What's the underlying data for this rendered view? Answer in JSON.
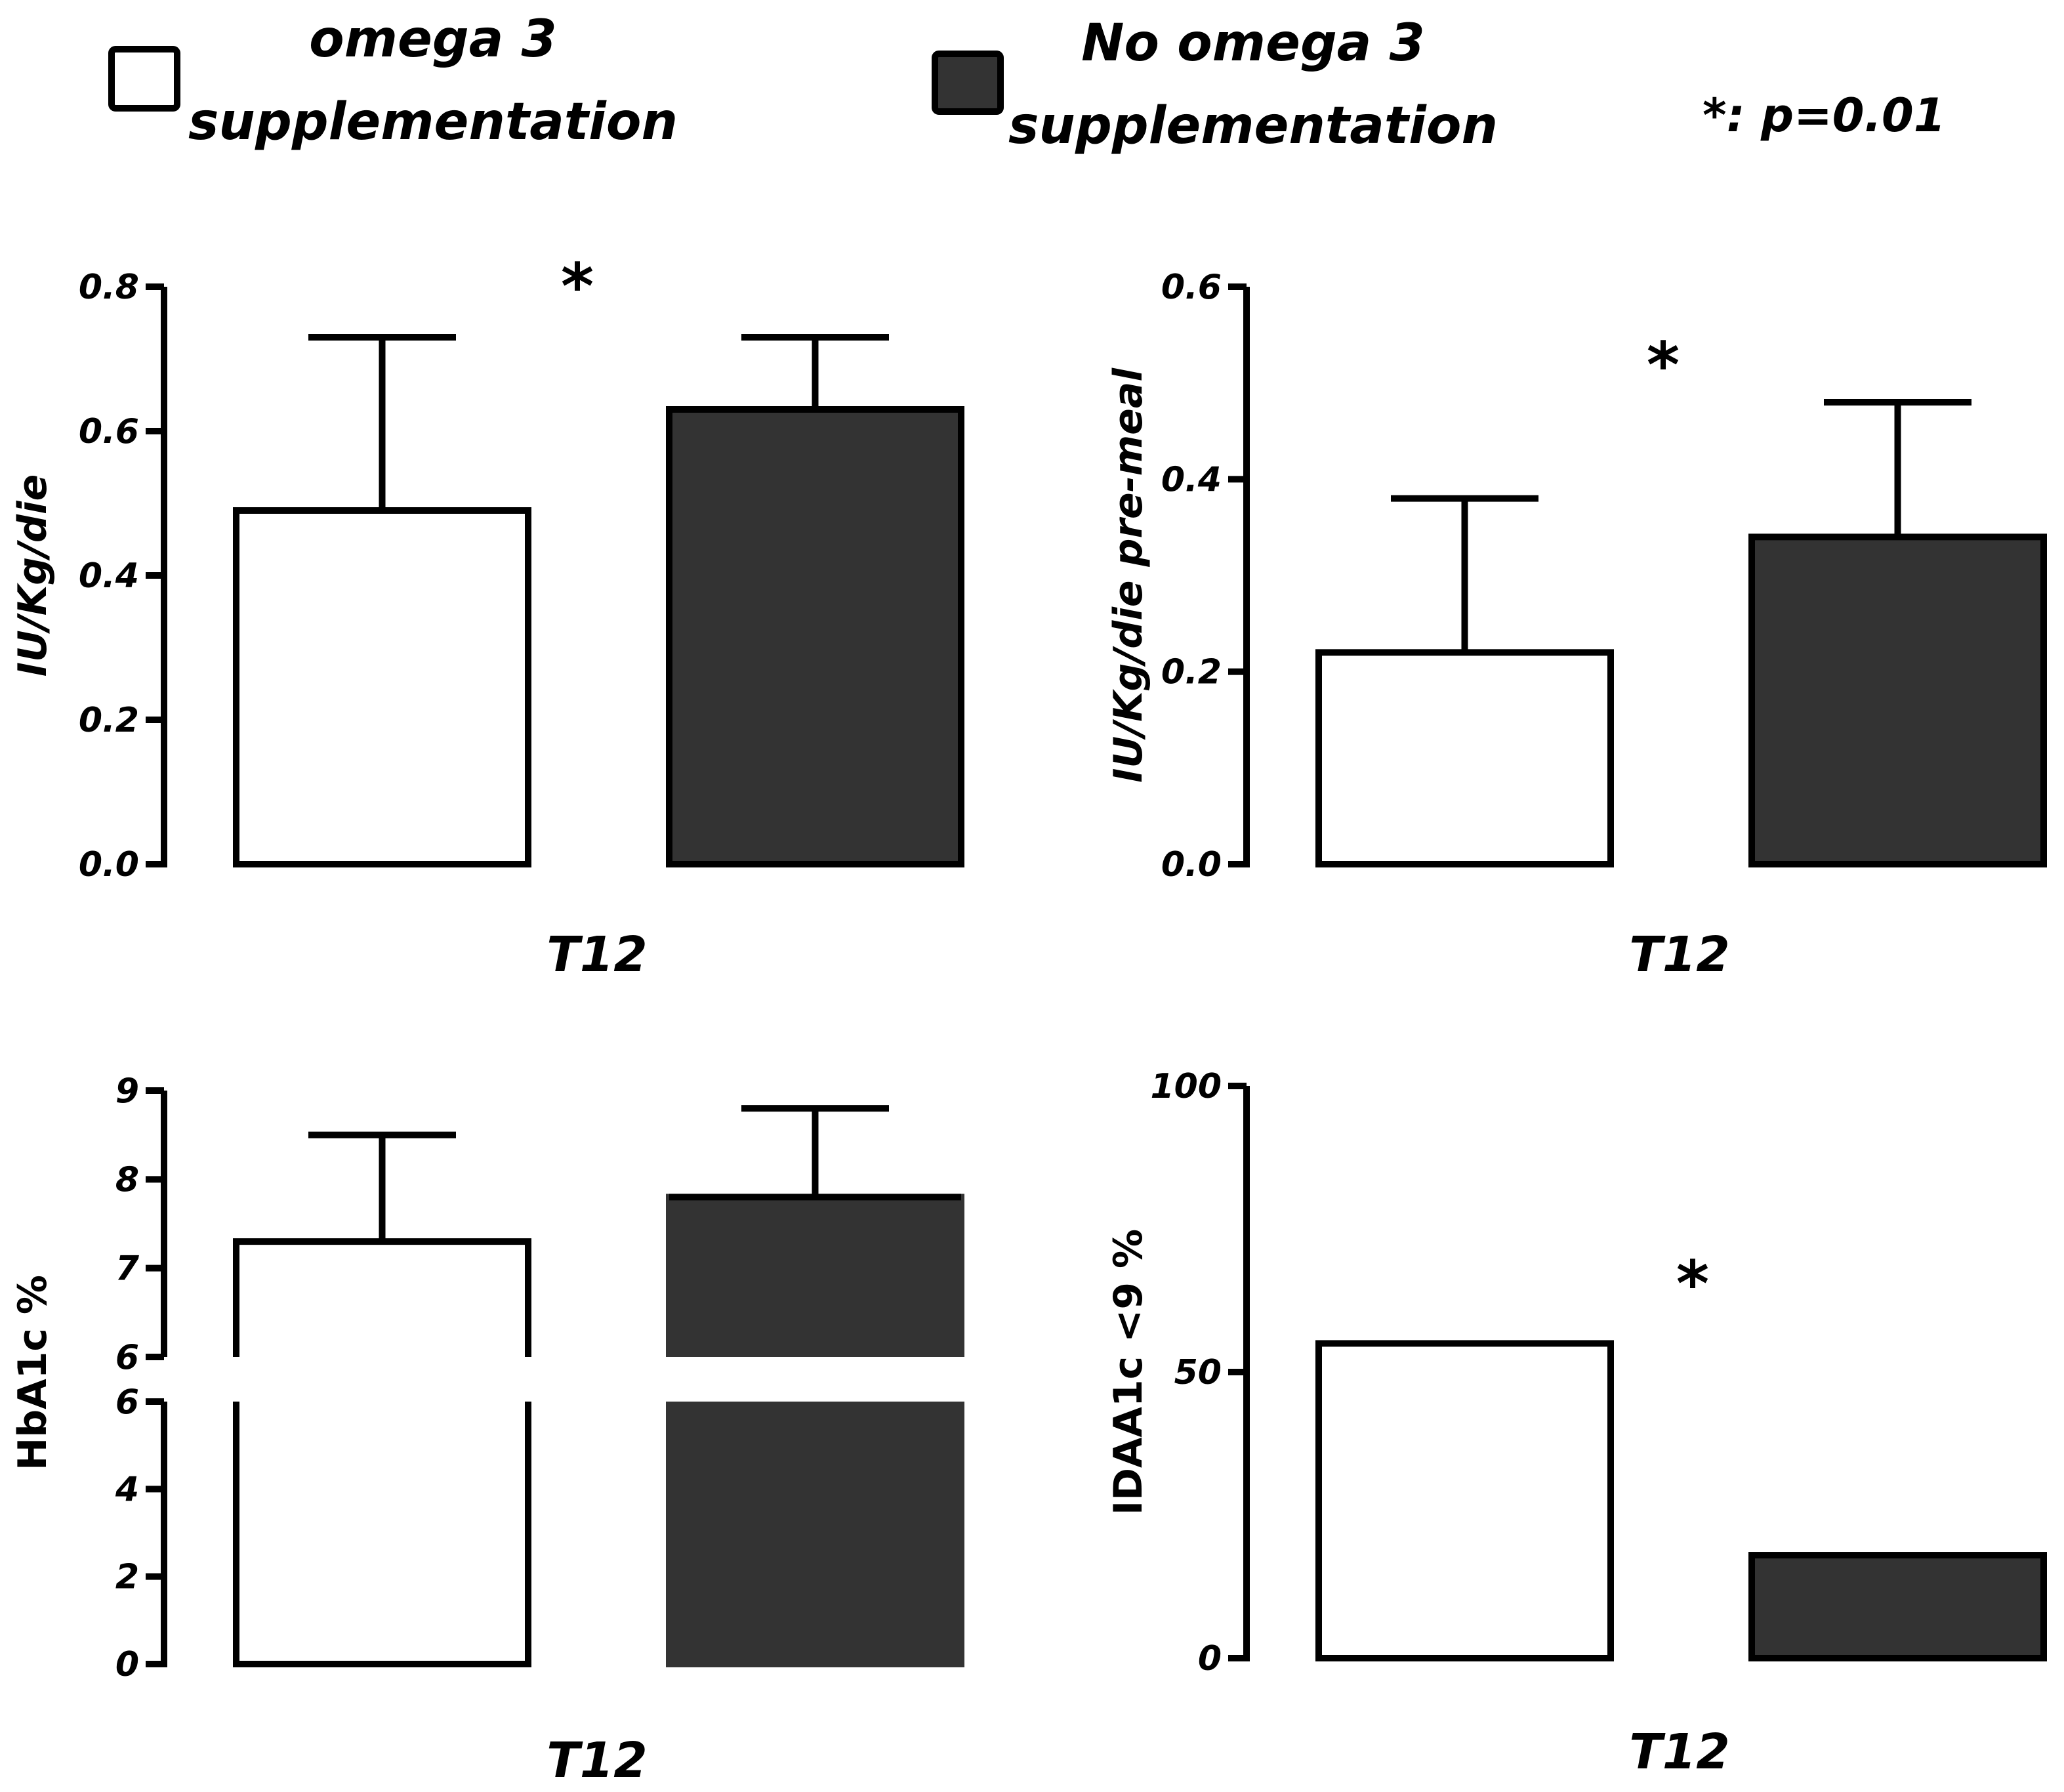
{
  "legend": {
    "items": [
      {
        "line1": "omega 3",
        "line2": "supplementation",
        "color": "#ffffff"
      },
      {
        "line1": "No omega 3",
        "line2": "supplementation",
        "color": "#333333"
      }
    ],
    "significance_note": "*: p=0.01"
  },
  "chart_data": [
    {
      "type": "bar",
      "ylabel": "IU/Kg/die",
      "xlabel": "T12",
      "ylim": [
        0,
        0.8
      ],
      "yticks": [
        "0.0",
        "0.2",
        "0.4",
        "0.6",
        "0.8"
      ],
      "yticks_values": [
        0,
        0.2,
        0.4,
        0.6,
        0.8
      ],
      "series": [
        {
          "name": "omega 3 supplementation",
          "value": 0.49,
          "error_top": 0.73,
          "color": "#ffffff"
        },
        {
          "name": "No omega 3 supplementation",
          "value": 0.63,
          "error_top": 0.73,
          "color": "#333333"
        }
      ],
      "significance": "*"
    },
    {
      "type": "bar",
      "ylabel": "IU/Kg/die pre-meal",
      "xlabel": "T12",
      "ylim": [
        0,
        0.6
      ],
      "yticks": [
        "0.0",
        "0.2",
        "0.4",
        "0.6"
      ],
      "yticks_values": [
        0,
        0.2,
        0.4,
        0.6
      ],
      "series": [
        {
          "name": "omega 3 supplementation",
          "value": 0.22,
          "error_top": 0.38,
          "color": "#ffffff"
        },
        {
          "name": "No omega 3 supplementation",
          "value": 0.34,
          "error_top": 0.48,
          "color": "#333333"
        }
      ],
      "significance": "*"
    },
    {
      "type": "bar",
      "ylabel": "HbA1c %",
      "xlabel": "T12",
      "axis_break": {
        "lower": [
          0,
          6
        ],
        "upper": [
          6,
          9
        ]
      },
      "yticks_lower": [
        "0",
        "2",
        "4",
        "6"
      ],
      "yticks_lower_values": [
        0,
        2,
        4,
        6
      ],
      "yticks_upper": [
        "6",
        "7",
        "8",
        "9"
      ],
      "yticks_upper_values": [
        6,
        7,
        8,
        9
      ],
      "series": [
        {
          "name": "omega 3 supplementation",
          "value": 7.3,
          "error_top": 8.5,
          "color": "#ffffff"
        },
        {
          "name": "No omega 3 supplementation",
          "value": 7.8,
          "error_top": 8.8,
          "color": "#333333"
        }
      ]
    },
    {
      "type": "bar",
      "ylabel": "IDAA1c <9 %",
      "xlabel": "T12",
      "ylim": [
        0,
        100
      ],
      "yticks": [
        "0",
        "50",
        "100"
      ],
      "yticks_values": [
        0,
        50,
        100
      ],
      "series": [
        {
          "name": "omega 3 supplementation",
          "value": 55,
          "color": "#ffffff"
        },
        {
          "name": "No omega 3 supplementation",
          "value": 18,
          "color": "#333333"
        }
      ],
      "significance": "*"
    }
  ]
}
